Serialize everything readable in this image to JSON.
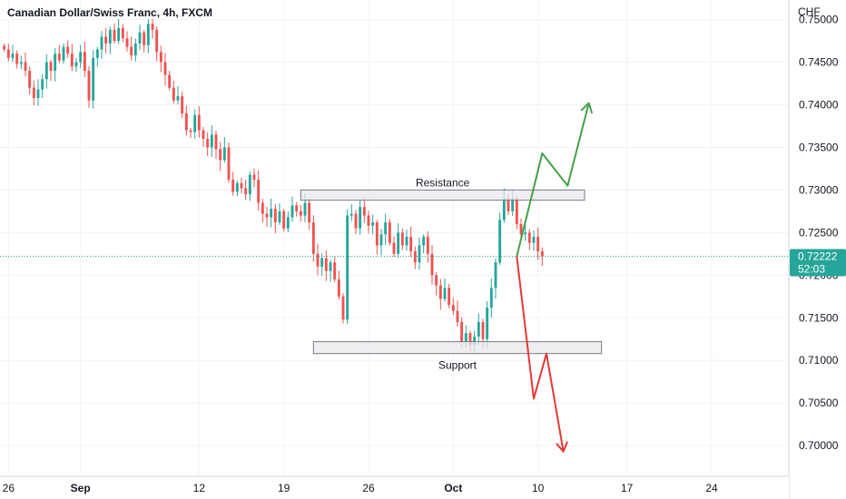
{
  "header": {
    "title": "Canadian Dollar/Swiss Franc, 4h, FXCM"
  },
  "colors": {
    "up": "#26a69a",
    "down": "#ef5350",
    "grid": "#f0f3fa",
    "price_line": "#26a69a",
    "price_tag_bg": "#26a69a",
    "zone_fill": "#e8e8ec",
    "zone_stroke": "#787b86",
    "arrow_up": "#43a047",
    "arrow_down": "#e53935"
  },
  "chart_data": {
    "type": "candlestick",
    "title": "Canadian Dollar/Swiss Franc, 4h, FXCM",
    "currency_label": "CHF",
    "ylim": [
      0.6965,
      0.7523
    ],
    "xlim": [
      -1,
      185
    ],
    "y_ticks": [
      0.75,
      0.745,
      0.74,
      0.735,
      0.73,
      0.725,
      0.72,
      0.715,
      0.71,
      0.705,
      0.7
    ],
    "y_tick_labels": [
      "0.75000",
      "0.74500",
      "0.74000",
      "0.73500",
      "0.73000",
      "0.72500",
      "0.72000",
      "0.71500",
      "0.71000",
      "0.70500",
      "0.70000"
    ],
    "x_ticks": [
      {
        "label": "26",
        "bar": 1,
        "bold": false
      },
      {
        "label": "Sep",
        "bar": 18,
        "bold": true
      },
      {
        "label": "12",
        "bar": 46,
        "bold": false
      },
      {
        "label": "19",
        "bar": 66,
        "bold": false
      },
      {
        "label": "26",
        "bar": 86,
        "bold": false
      },
      {
        "label": "Oct",
        "bar": 106,
        "bold": true
      },
      {
        "label": "10",
        "bar": 126,
        "bold": false
      },
      {
        "label": "17",
        "bar": 147,
        "bold": false
      },
      {
        "label": "24",
        "bar": 167,
        "bold": false
      }
    ],
    "current_price": {
      "value": 0.72222,
      "label": "0.72222",
      "countdown": "52:03"
    },
    "closes": [
      0.7465,
      0.7455,
      0.746,
      0.7448,
      0.745,
      0.744,
      0.742,
      0.7408,
      0.7418,
      0.743,
      0.745,
      0.744,
      0.746,
      0.7452,
      0.7468,
      0.746,
      0.7445,
      0.745,
      0.7462,
      0.744,
      0.7405,
      0.7455,
      0.7465,
      0.748,
      0.7472,
      0.7488,
      0.7475,
      0.749,
      0.7478,
      0.7468,
      0.7458,
      0.7472,
      0.7485,
      0.747,
      0.7495,
      0.7488,
      0.7462,
      0.745,
      0.7435,
      0.742,
      0.7405,
      0.741,
      0.739,
      0.737,
      0.7368,
      0.7388,
      0.737,
      0.736,
      0.735,
      0.7365,
      0.7348,
      0.7335,
      0.735,
      0.7312,
      0.7298,
      0.7308,
      0.7302,
      0.7295,
      0.7318,
      0.7312,
      0.7285,
      0.7272,
      0.7268,
      0.7278,
      0.7262,
      0.7275,
      0.7255,
      0.7268,
      0.7282,
      0.7275,
      0.727,
      0.7285,
      0.7262,
      0.7225,
      0.721,
      0.722,
      0.7205,
      0.7215,
      0.7195,
      0.7175,
      0.7148,
      0.727,
      0.7272,
      0.7255,
      0.728,
      0.727,
      0.7258,
      0.7262,
      0.7235,
      0.7248,
      0.7262,
      0.7238,
      0.7225,
      0.725,
      0.7235,
      0.7245,
      0.7228,
      0.7215,
      0.7235,
      0.7245,
      0.7225,
      0.72,
      0.7188,
      0.7172,
      0.7185,
      0.7165,
      0.7158,
      0.7145,
      0.7122,
      0.7132,
      0.7118,
      0.7128,
      0.7145,
      0.7125,
      0.7162,
      0.7185,
      0.7215,
      0.7265,
      0.729,
      0.7275,
      0.729,
      0.726,
      0.7248,
      0.725,
      0.7238,
      0.7245,
      0.7228,
      0.7222
    ],
    "arrows": [
      {
        "color_key": "arrow_up",
        "points": [
          [
            121,
            0.7222
          ],
          [
            127,
            0.7343
          ],
          [
            133,
            0.7305
          ],
          [
            138,
            0.7402
          ]
        ]
      },
      {
        "color_key": "arrow_down",
        "points": [
          [
            121,
            0.7222
          ],
          [
            125,
            0.7055
          ],
          [
            128,
            0.7108
          ],
          [
            132,
            0.6993
          ]
        ]
      }
    ],
    "zones": [
      {
        "name": "Resistance",
        "x0": 70,
        "x1": 137,
        "y_low": 0.7288,
        "y_high": 0.73,
        "label_pos": "above"
      },
      {
        "name": "Support",
        "x0": 73,
        "x1": 141,
        "y_low": 0.7108,
        "y_high": 0.7122,
        "label_pos": "below"
      }
    ]
  }
}
